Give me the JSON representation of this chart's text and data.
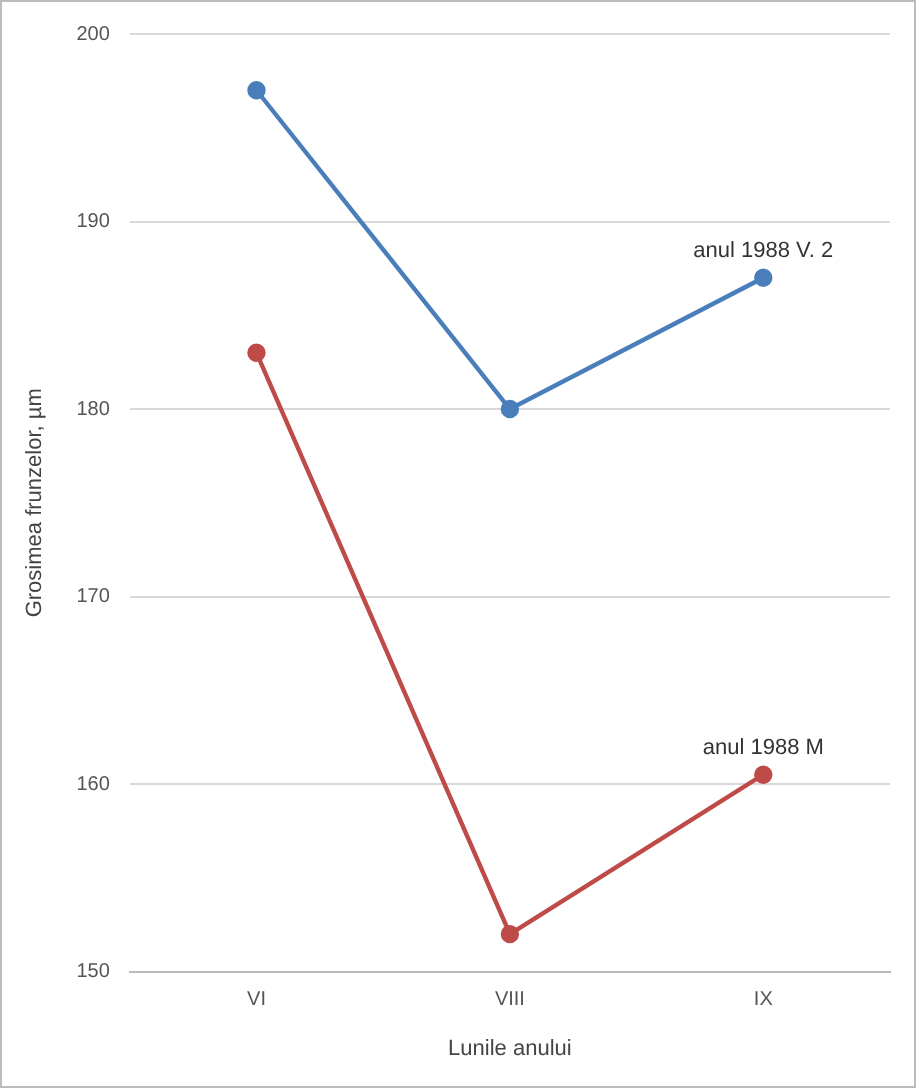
{
  "chart_data": {
    "type": "line",
    "xlabel": "Lunile anului",
    "ylabel": "Grosimea frunzelor, µm",
    "categories": [
      "VI",
      "VIII",
      "IX"
    ],
    "series": [
      {
        "name": "anul 1988 V. 2",
        "color": "#4a7ebb",
        "values": [
          197,
          180,
          187
        ]
      },
      {
        "name": "anul 1988 M",
        "color": "#be4b48",
        "values": [
          183,
          152,
          160.5
        ]
      }
    ],
    "ylim": [
      150,
      200
    ],
    "yticks": [
      150,
      160,
      170,
      180,
      190,
      200
    ],
    "grid": "y",
    "legend": false,
    "marker": "circle"
  }
}
